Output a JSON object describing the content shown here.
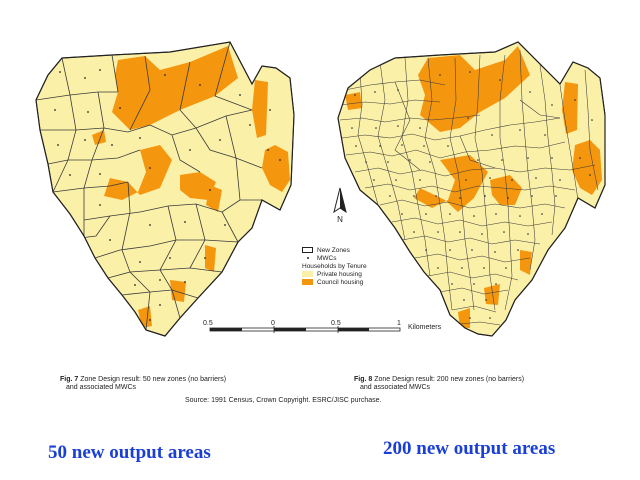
{
  "colors": {
    "background": "#ffffff",
    "private_housing": "#fbf0a8",
    "council_housing": "#f5960f",
    "boundary": "#3a3a3a",
    "headline": "#1a3fd6"
  },
  "map_left": {
    "figure_label": "Fig. 7",
    "caption_line1": "Zone Design result: 50 new zones (no barriers)",
    "caption_line2": "and associated MWCs"
  },
  "map_right": {
    "figure_label": "Fig. 8",
    "caption_line1": "Zone Design result: 200 new zones (no barriers)",
    "caption_line2": "and associated MWCs"
  },
  "north_arrow": {
    "label": "N",
    "icon": "north-arrow-icon"
  },
  "legend": {
    "new_zones": "New Zones",
    "mwcs": "MWCs",
    "heading": "Households by Tenure",
    "private": "Private housing",
    "council": "Council housing"
  },
  "scale_bar": {
    "ticks": [
      "0.5",
      "0",
      "0.5",
      "1"
    ],
    "unit": "Kilometers"
  },
  "source": "Source: 1991 Census, Crown Copyright. ESRC/JISC purchase.",
  "headlines": {
    "left": "50 new output areas",
    "right": "200 new output areas"
  }
}
